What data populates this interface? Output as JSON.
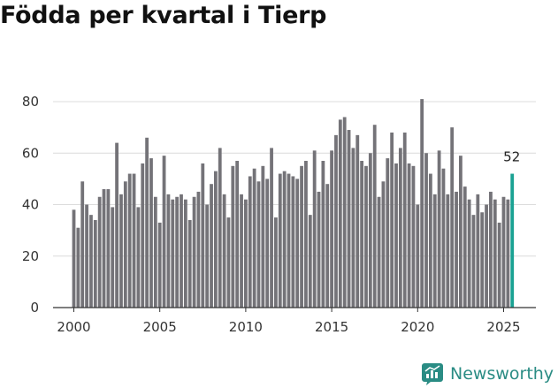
{
  "title": "Födda per kvartal i Tierp",
  "brand": {
    "name": "Newsworthy",
    "color": "#2a8c84"
  },
  "colors": {
    "bar": "#747378",
    "highlight": "#1aa293",
    "axis": "#333333"
  },
  "chart_data": {
    "type": "bar",
    "title": "Födda per kvartal i Tierp",
    "xlabel": "",
    "ylabel": "",
    "ylim": [
      0,
      80
    ],
    "y_ticks": [
      "0",
      "20",
      "40",
      "60",
      "80"
    ],
    "x_ticks": [
      "2000",
      "2005",
      "2010",
      "2015",
      "2020",
      "2025"
    ],
    "x_tick_years": [
      2000,
      2005,
      2010,
      2015,
      2020,
      2025
    ],
    "start_year": 2000,
    "start_quarter": 1,
    "values": [
      38,
      31,
      49,
      40,
      36,
      34,
      43,
      46,
      46,
      39,
      64,
      44,
      49,
      52,
      52,
      39,
      56,
      66,
      58,
      43,
      33,
      59,
      44,
      42,
      43,
      44,
      42,
      34,
      43,
      45,
      56,
      40,
      48,
      53,
      62,
      44,
      35,
      55,
      57,
      44,
      42,
      51,
      54,
      49,
      55,
      50,
      62,
      35,
      52,
      53,
      52,
      51,
      50,
      55,
      57,
      36,
      61,
      45,
      57,
      48,
      61,
      67,
      73,
      74,
      69,
      62,
      67,
      57,
      55,
      60,
      71,
      43,
      49,
      58,
      68,
      56,
      62,
      68,
      56,
      55,
      40,
      81,
      60,
      52,
      44,
      61,
      54,
      44,
      70,
      45,
      59,
      47,
      42,
      36,
      44,
      37,
      40,
      45,
      42,
      33,
      43,
      42,
      52
    ],
    "highlight_index": 102,
    "annotation": "52"
  }
}
